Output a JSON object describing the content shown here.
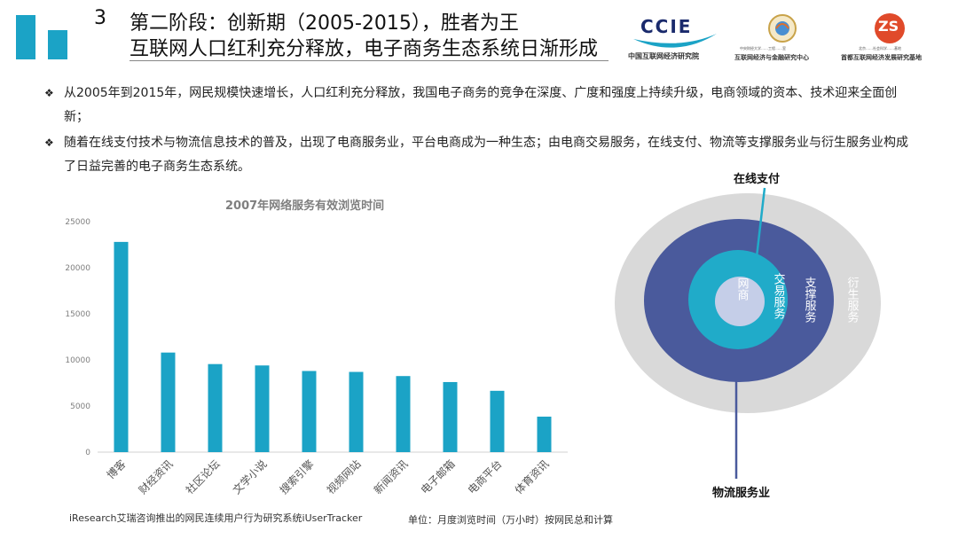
{
  "header": {
    "slide_number": "3",
    "title_line1": "第二阶段：创新期（2005-2015），胜者为王",
    "title_line2": "互联网人口红利充分释放，电子商务生态系统日渐形成"
  },
  "logos": {
    "ccie_mark": "CCIE",
    "ccie_name": "中国互联网经济研究院",
    "center_mark_small": "中央财经大学……工程……室",
    "center_name": "互联网经济与金融研究中心",
    "zs_mark": "ZS",
    "zs_small": "北京……社会科学……基地",
    "zs_name": "首都互联网经济发展研究基地"
  },
  "bullets": [
    {
      "mark": "❖",
      "text": "从2005年到2015年，网民规模快速增长，人口红利充分释放，我国电子商务的竞争在深度、广度和强度上持续升级，电商领域的资本、技术迎来全面创新；"
    },
    {
      "mark": "❖",
      "text": "随着在线支付技术与物流信息技术的普及，出现了电商服务业，平台电商成为一种生态；由电商交易服务，在线支付、物流等支撑服务业与衍生服务业构成了日益完善的电子商务生态系统。"
    }
  ],
  "chart_data": {
    "type": "bar",
    "title": "2007年网络服务有效浏览时间",
    "categories": [
      "博客",
      "财经资讯",
      "社区论坛",
      "文学小说",
      "搜索引擎",
      "视频网站",
      "新闻资讯",
      "电子邮箱",
      "电商平台",
      "体育资讯"
    ],
    "values": [
      22800,
      10800,
      9550,
      9400,
      8800,
      8700,
      8250,
      7600,
      6650,
      3850
    ],
    "ylim": [
      0,
      25000
    ],
    "yticks": [
      0,
      5000,
      10000,
      15000,
      20000,
      25000
    ],
    "bar_color": "#1ba3c6",
    "grid": false,
    "legend": "none"
  },
  "diagram": {
    "rings": [
      {
        "label": "衍生服务",
        "color": "#d9d9d9"
      },
      {
        "label": "支撑服务",
        "color": "#4a5a9c"
      },
      {
        "label": "交易服务",
        "color": "#20abc9"
      },
      {
        "label": "网商",
        "color": "#c5cee8"
      }
    ],
    "callout_top": "在线支付",
    "callout_bottom": "物流服务业"
  },
  "footer": {
    "source": "iResearch艾瑞咨询推出的网民连续用户行为研究系统iUserTracker",
    "unit": "单位：月度浏览时间（万小时）按网民总和计算"
  }
}
